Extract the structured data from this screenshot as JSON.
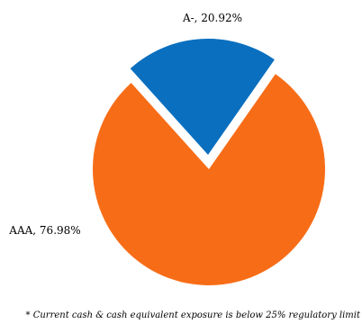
{
  "chart_data": {
    "type": "pie",
    "slices": [
      {
        "label": "A-",
        "value": 20.92,
        "display": "A-, 20.92%",
        "color": "#0a6fbf",
        "exploded": true
      },
      {
        "label": "AAA",
        "value": 76.98,
        "display": "AAA, 76.98%",
        "color": "#f76d17",
        "exploded": false
      }
    ],
    "legend": "none"
  },
  "footnote": "* Current cash & cash equivalent exposure is below 25% regulatory limit"
}
